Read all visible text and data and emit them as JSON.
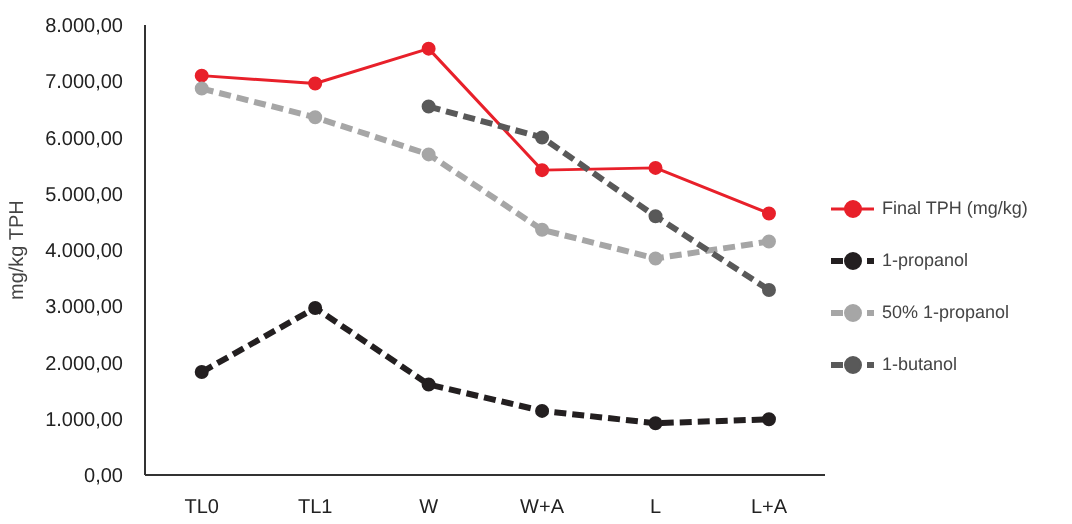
{
  "chart_data": {
    "type": "line",
    "ylabel": "mg/kg TPH",
    "categories": [
      "TL0",
      "TL1",
      "W",
      "W+A",
      "L",
      "L+A"
    ],
    "ylim": [
      0,
      8000
    ],
    "yticks": [
      {
        "value": 0,
        "label": "0,00"
      },
      {
        "value": 1000,
        "label": "1.000,00"
      },
      {
        "value": 2000,
        "label": "2.000,00"
      },
      {
        "value": 3000,
        "label": "3.000,00"
      },
      {
        "value": 4000,
        "label": "4.000,00"
      },
      {
        "value": 5000,
        "label": "5.000,00"
      },
      {
        "value": 6000,
        "label": "6.000,00"
      },
      {
        "value": 7000,
        "label": "7.000,00"
      },
      {
        "value": 8000,
        "label": "8.000,00"
      }
    ],
    "grid": false,
    "legend": "right",
    "marker": "circle",
    "series": [
      {
        "name": "Final TPH (mg/kg)",
        "color": "#e8202a",
        "line_style": "solid",
        "values": [
          7100,
          6960,
          7580,
          5420,
          5460,
          4650
        ]
      },
      {
        "name": "1-propanol",
        "color": "#231f20",
        "line_style": "dashed",
        "values": [
          1830,
          2970,
          1610,
          1140,
          920,
          990
        ]
      },
      {
        "name": "50% 1-propanol",
        "color": "#a6a6a6",
        "line_style": "dashed",
        "values": [
          6870,
          6360,
          5700,
          4360,
          3850,
          4150
        ]
      },
      {
        "name": "1-butanol",
        "color": "#595959",
        "line_style": "dashed",
        "values": [
          null,
          null,
          6550,
          6000,
          4600,
          3290
        ]
      }
    ]
  }
}
